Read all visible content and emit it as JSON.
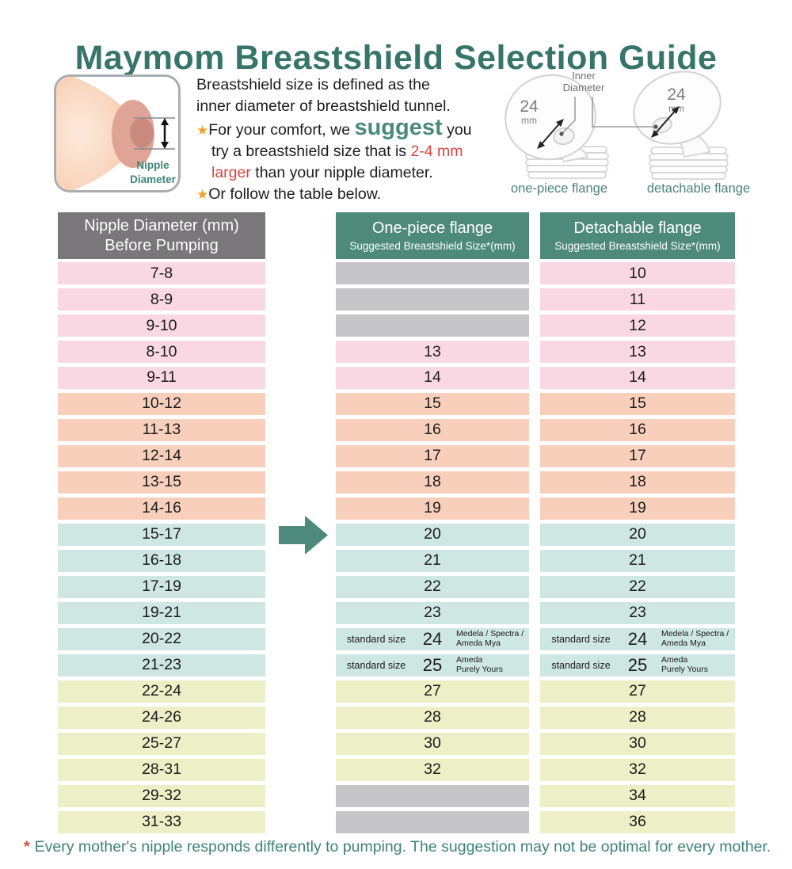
{
  "title": "Maymom Breastshield Selection Guide",
  "illustration": {
    "label_line1": "Nipple",
    "label_line2": "Diameter"
  },
  "icons": {
    "bullet_star": "★"
  },
  "intro": {
    "s1_line1": "Breastshield size is defined as the",
    "s1_line2": "inner diameter of breastshield tunnel.",
    "b1_line1_pre": "For your comfort, we ",
    "b1_emphasis": "suggest",
    "b1_line1_post": " you",
    "b1_line2_pre": "try a breastshield size that is ",
    "b1_line2_red": "2-4 mm",
    "b1_line3_red": "larger",
    "b1_line3_post": " than your nipple diameter.",
    "b2": "Or follow the table below."
  },
  "flanges": {
    "inner_diameter_line1": "Inner",
    "inner_diameter_line2": "Diameter",
    "size_value": "24",
    "size_unit": "mm",
    "left_caption": "one-piece flange",
    "right_caption": "detachable flange"
  },
  "table": {
    "col1_header_line1": "Nipple Diameter (mm)",
    "col1_header_line2": "Before Pumping",
    "col2_header_title": "One-piece flange",
    "col2_header_sub": "Suggested Breastshield Size*(mm)",
    "col3_header_title": "Detachable flange",
    "col3_header_sub": "Suggested Breastshield Size*(mm)",
    "rows": [
      {
        "nipple": "7-8",
        "color": "pink",
        "one": {
          "type": "empty"
        },
        "det": {
          "type": "value",
          "value": "10"
        }
      },
      {
        "nipple": "8-9",
        "color": "pink",
        "one": {
          "type": "empty"
        },
        "det": {
          "type": "value",
          "value": "11"
        }
      },
      {
        "nipple": "9-10",
        "color": "pink",
        "one": {
          "type": "empty"
        },
        "det": {
          "type": "value",
          "value": "12"
        }
      },
      {
        "nipple": "8-10",
        "color": "pink",
        "one": {
          "type": "value",
          "value": "13"
        },
        "det": {
          "type": "value",
          "value": "13"
        }
      },
      {
        "nipple": "9-11",
        "color": "pink",
        "one": {
          "type": "value",
          "value": "14"
        },
        "det": {
          "type": "value",
          "value": "14"
        }
      },
      {
        "nipple": "10-12",
        "color": "salmon",
        "one": {
          "type": "value",
          "value": "15"
        },
        "det": {
          "type": "value",
          "value": "15"
        }
      },
      {
        "nipple": "11-13",
        "color": "salmon",
        "one": {
          "type": "value",
          "value": "16"
        },
        "det": {
          "type": "value",
          "value": "16"
        }
      },
      {
        "nipple": "12-14",
        "color": "salmon",
        "one": {
          "type": "value",
          "value": "17"
        },
        "det": {
          "type": "value",
          "value": "17"
        }
      },
      {
        "nipple": "13-15",
        "color": "salmon",
        "one": {
          "type": "value",
          "value": "18"
        },
        "det": {
          "type": "value",
          "value": "18"
        }
      },
      {
        "nipple": "14-16",
        "color": "salmon",
        "one": {
          "type": "value",
          "value": "19"
        },
        "det": {
          "type": "value",
          "value": "19"
        }
      },
      {
        "nipple": "15-17",
        "color": "blue",
        "one": {
          "type": "value",
          "value": "20"
        },
        "det": {
          "type": "value",
          "value": "20"
        }
      },
      {
        "nipple": "16-18",
        "color": "blue",
        "one": {
          "type": "value",
          "value": "21"
        },
        "det": {
          "type": "value",
          "value": "21"
        }
      },
      {
        "nipple": "17-19",
        "color": "blue",
        "one": {
          "type": "value",
          "value": "22"
        },
        "det": {
          "type": "value",
          "value": "22"
        }
      },
      {
        "nipple": "19-21",
        "color": "blue",
        "one": {
          "type": "value",
          "value": "23"
        },
        "det": {
          "type": "value",
          "value": "23"
        }
      },
      {
        "nipple": "20-22",
        "color": "blue",
        "one": {
          "type": "standard",
          "label": "standard size",
          "value": "24",
          "brand1": "Medela / Spectra /",
          "brand2": "Ameda Mya"
        },
        "det": {
          "type": "standard",
          "label": "standard size",
          "value": "24",
          "brand1": "Medela / Spectra /",
          "brand2": "Ameda Mya"
        }
      },
      {
        "nipple": "21-23",
        "color": "blue",
        "one": {
          "type": "standard",
          "label": "standard size",
          "value": "25",
          "brand1": "Ameda",
          "brand2": "Purely Yours"
        },
        "det": {
          "type": "standard",
          "label": "standard size",
          "value": "25",
          "brand1": "Ameda",
          "brand2": "Purely Yours"
        }
      },
      {
        "nipple": "22-24",
        "color": "yellow",
        "one": {
          "type": "value",
          "value": "27"
        },
        "det": {
          "type": "value",
          "value": "27"
        }
      },
      {
        "nipple": "24-26",
        "color": "yellow",
        "one": {
          "type": "value",
          "value": "28"
        },
        "det": {
          "type": "value",
          "value": "28"
        }
      },
      {
        "nipple": "25-27",
        "color": "yellow",
        "one": {
          "type": "value",
          "value": "30"
        },
        "det": {
          "type": "value",
          "value": "30"
        }
      },
      {
        "nipple": "28-31",
        "color": "yellow",
        "one": {
          "type": "value",
          "value": "32"
        },
        "det": {
          "type": "value",
          "value": "32"
        }
      },
      {
        "nipple": "29-32",
        "color": "yellow",
        "one": {
          "type": "empty"
        },
        "det": {
          "type": "value",
          "value": "34"
        }
      },
      {
        "nipple": "31-33",
        "color": "yellow",
        "one": {
          "type": "empty"
        },
        "det": {
          "type": "value",
          "value": "36"
        }
      }
    ]
  },
  "footnote": {
    "star": "*",
    "text": "Every mother's nipple responds differently to pumping. The suggestion may not be optimal for every mother."
  },
  "colors": {
    "title_teal": "#37756b",
    "accent_teal": "#4a8a7d",
    "header_teal": "#4e8a7a",
    "header_gray": "#797779",
    "highlight_red": "#d9453f",
    "star_orange": "#f2a12f",
    "footnote_teal": "#3f837a",
    "rows": {
      "pink": "#f9d8e3",
      "salmon": "#f7cfbb",
      "blue": "#cee7e2",
      "yellow": "#edefc6",
      "empty_gray": "#c6c5c7"
    }
  },
  "chart_data": {
    "type": "table",
    "title": "Maymom Breastshield Selection Guide",
    "columns": [
      "Nipple Diameter (mm) Before Pumping",
      "One-piece flange Suggested Breastshield Size*(mm)",
      "Detachable flange Suggested Breastshield Size*(mm)"
    ],
    "rows": [
      [
        "7-8",
        null,
        10
      ],
      [
        "8-9",
        null,
        11
      ],
      [
        "9-10",
        null,
        12
      ],
      [
        "8-10",
        13,
        13
      ],
      [
        "9-11",
        14,
        14
      ],
      [
        "10-12",
        15,
        15
      ],
      [
        "11-13",
        16,
        16
      ],
      [
        "12-14",
        17,
        17
      ],
      [
        "13-15",
        18,
        18
      ],
      [
        "14-16",
        19,
        19
      ],
      [
        "15-17",
        20,
        20
      ],
      [
        "16-18",
        21,
        21
      ],
      [
        "17-19",
        22,
        22
      ],
      [
        "19-21",
        23,
        23
      ],
      [
        "20-22",
        "24 (standard size; Medela / Spectra / Ameda Mya)",
        "24 (standard size; Medela / Spectra / Ameda Mya)"
      ],
      [
        "21-23",
        "25 (standard size; Ameda Purely Yours)",
        "25 (standard size; Ameda Purely Yours)"
      ],
      [
        "22-24",
        27,
        27
      ],
      [
        "24-26",
        28,
        28
      ],
      [
        "25-27",
        30,
        30
      ],
      [
        "28-31",
        32,
        32
      ],
      [
        "29-32",
        null,
        34
      ],
      [
        "31-33",
        null,
        36
      ]
    ]
  }
}
